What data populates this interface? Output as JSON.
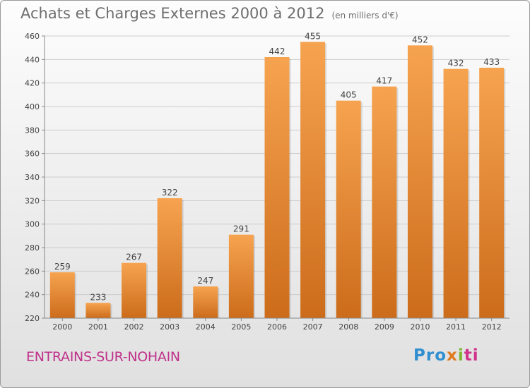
{
  "title": "Achats et Charges Externes 2000 à 2012",
  "unit_note": "(en milliers d'€)",
  "commune": "ENTRAINS-SUR-NOHAIN",
  "logo": [
    "Pro",
    "x",
    "i",
    "ti"
  ],
  "colors": {
    "bar_light": "#f6a34f",
    "bar_dark": "#cc6c1b",
    "grid": "#cccccc",
    "commune": "#c0308a"
  },
  "chart_data": {
    "type": "bar",
    "categories": [
      "2000",
      "2001",
      "2002",
      "2003",
      "2004",
      "2005",
      "2006",
      "2007",
      "2008",
      "2009",
      "2010",
      "2011",
      "2012"
    ],
    "values": [
      259,
      233,
      267,
      322,
      247,
      291,
      442,
      455,
      405,
      417,
      452,
      432,
      433
    ],
    "yticks": [
      220,
      240,
      260,
      280,
      300,
      320,
      340,
      360,
      380,
      400,
      420,
      440,
      460
    ],
    "ylim": [
      220,
      460
    ],
    "grid": true,
    "xlabel": "",
    "ylabel": ""
  }
}
